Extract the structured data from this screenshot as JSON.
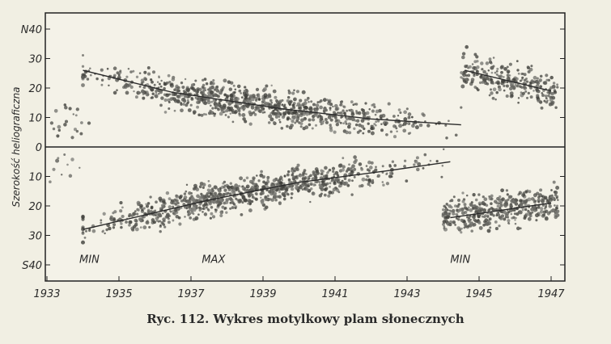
{
  "chart_data": {
    "type": "scatter",
    "title": "",
    "xlabel": "",
    "ylabel": "Szerokość heliograficzna",
    "xlim": [
      1933,
      1948
    ],
    "ylim": [
      -43,
      43
    ],
    "x_ticks": [
      1933,
      1935,
      1937,
      1939,
      1941,
      1943,
      1945,
      1947
    ],
    "y_ticks": [
      {
        "value": 40,
        "label": "N40"
      },
      {
        "value": 30,
        "label": "30"
      },
      {
        "value": 20,
        "label": "20"
      },
      {
        "value": 10,
        "label": "10"
      },
      {
        "value": 0,
        "label": "0"
      },
      {
        "value": -10,
        "label": "10"
      },
      {
        "value": -20,
        "label": "20"
      },
      {
        "value": -30,
        "label": "30"
      },
      {
        "value": -40,
        "label": "S40"
      }
    ],
    "annotations": [
      {
        "text": "MIN",
        "x": 1933.9,
        "y": -38
      },
      {
        "text": "MAX",
        "x": 1937.3,
        "y": -38
      },
      {
        "text": "MIN",
        "x": 1944.2,
        "y": -38
      }
    ],
    "trend_lines": [
      {
        "hemisphere": "north",
        "cycle": 17,
        "points": [
          [
            1934.0,
            26
          ],
          [
            1936.5,
            18.5
          ],
          [
            1939.5,
            13
          ],
          [
            1942.0,
            9.5
          ],
          [
            1944.5,
            7.5
          ]
        ]
      },
      {
        "hemisphere": "south",
        "cycle": 17,
        "points": [
          [
            1934.0,
            -28
          ],
          [
            1937.5,
            -18
          ],
          [
            1940.0,
            -12
          ],
          [
            1942.5,
            -8
          ],
          [
            1944.2,
            -5
          ]
        ]
      },
      {
        "hemisphere": "north",
        "cycle": 18,
        "points": [
          [
            1944.6,
            26
          ],
          [
            1947.0,
            19
          ]
        ]
      },
      {
        "hemisphere": "south",
        "cycle": 18,
        "points": [
          [
            1944.2,
            -24
          ],
          [
            1947.0,
            -19
          ]
        ]
      }
    ],
    "series": [
      {
        "hemisphere": "north",
        "cycle": 16,
        "x_range": [
          1933.0,
          1934.2
        ],
        "lat_band": [
          2,
          15
        ],
        "approx_points": 20
      },
      {
        "hemisphere": "south",
        "cycle": 16,
        "x_range": [
          1933.0,
          1934.0
        ],
        "lat_band": [
          -15,
          -2
        ],
        "approx_points": 10
      },
      {
        "hemisphere": "north",
        "cycle": 17,
        "x_range": [
          1934.0,
          1944.5
        ],
        "lat_band": "around trend line ±8",
        "approx_points": 900
      },
      {
        "hemisphere": "south",
        "cycle": 17,
        "x_range": [
          1934.0,
          1944.3
        ],
        "lat_band": "around trend line ±8",
        "approx_points": 900
      },
      {
        "hemisphere": "north",
        "cycle": 18,
        "x_range": [
          1944.5,
          1947.2
        ],
        "lat_band": "around trend line ±9",
        "approx_points": 260
      },
      {
        "hemisphere": "south",
        "cycle": 18,
        "x_range": [
          1944.0,
          1947.2
        ],
        "lat_band": "around trend line ±10",
        "approx_points": 420
      }
    ],
    "grid": false,
    "zero_line": true
  },
  "caption": "Ryc. 112. Wykres motylkowy plam słonecznych"
}
